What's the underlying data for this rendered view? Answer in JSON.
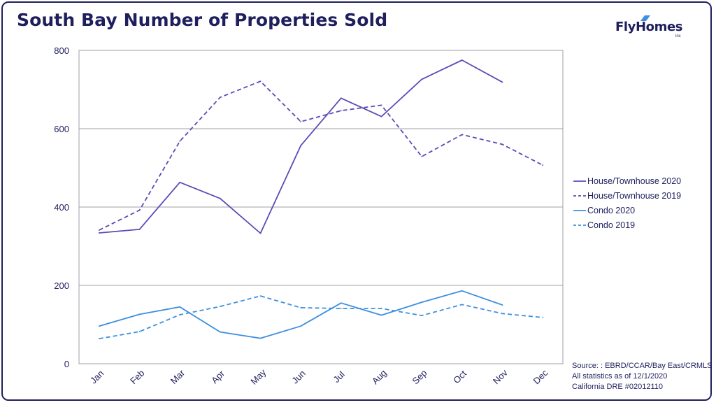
{
  "title": "South Bay Number of Properties Sold",
  "logo": {
    "text": "FlyHomes",
    "sub": "inc"
  },
  "colors": {
    "house": "#5b4bb7",
    "condo": "#3d8fe0",
    "text": "#1f1f5e",
    "grid": "#a0a0a8"
  },
  "legend": [
    {
      "label": "House/Townhouse 2020",
      "series": 0
    },
    {
      "label": "House/Townhouse 2019",
      "series": 1
    },
    {
      "label": "Condo 2020",
      "series": 2
    },
    {
      "label": "Condo 2019",
      "series": 3
    }
  ],
  "source_lines": [
    "Source: : EBRD/CCAR/Bay East/CRMLS",
    "All statistics as of 12/1/2020",
    "California DRE #02012110"
  ],
  "chart_data": {
    "type": "line",
    "title": "South Bay Number of Properties Sold",
    "categories": [
      "Jan",
      "Feb",
      "Mar",
      "Apr",
      "May",
      "Jun",
      "Jul",
      "Aug",
      "Sep",
      "Oct",
      "Nov",
      "Dec"
    ],
    "ylim": [
      0,
      800
    ],
    "yticks": [
      0,
      200,
      400,
      600,
      800
    ],
    "grid": true,
    "legend_position": "right",
    "series": [
      {
        "name": "House/Townhouse 2020",
        "color": "#5b4bb7",
        "dashed": false,
        "values": [
          334,
          343,
          463,
          422,
          333,
          557,
          678,
          631,
          726,
          775,
          719,
          null
        ]
      },
      {
        "name": "House/Townhouse 2019",
        "color": "#5b4bb7",
        "dashed": true,
        "values": [
          341,
          392,
          568,
          680,
          721,
          618,
          646,
          660,
          529,
          585,
          560,
          507
        ]
      },
      {
        "name": "Condo 2020",
        "color": "#3d8fe0",
        "dashed": false,
        "values": [
          96,
          126,
          145,
          81,
          65,
          96,
          155,
          124,
          157,
          186,
          150,
          null
        ]
      },
      {
        "name": "Condo 2019",
        "color": "#3d8fe0",
        "dashed": true,
        "values": [
          64,
          82,
          125,
          146,
          173,
          143,
          141,
          141,
          123,
          151,
          128,
          118
        ]
      }
    ]
  }
}
